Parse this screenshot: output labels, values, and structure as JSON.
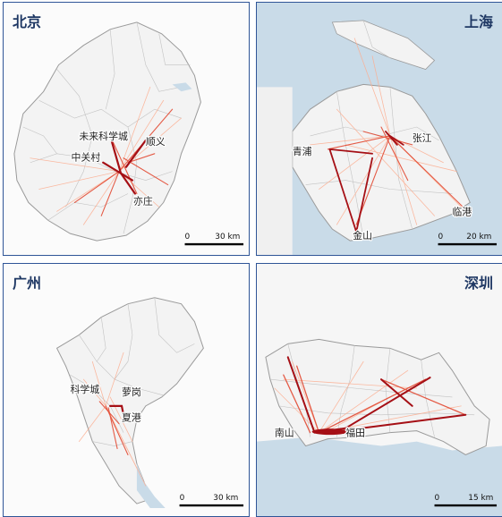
{
  "panels": [
    {
      "id": "beijing",
      "title": "北京",
      "places": [
        "未来科学城",
        "中关村",
        "顺义",
        "亦庄"
      ],
      "scale": {
        "zero": "0",
        "distance": "30 km"
      }
    },
    {
      "id": "shanghai",
      "title": "上海",
      "places": [
        "青浦",
        "张江",
        "临港",
        "金山"
      ],
      "scale": {
        "zero": "0",
        "distance": "20 km"
      }
    },
    {
      "id": "guangzhou",
      "title": "广州",
      "places": [
        "科学城",
        "萝岗",
        "夏港"
      ],
      "scale": {
        "zero": "0",
        "distance": "30 km"
      }
    },
    {
      "id": "shenzhen",
      "title": "深圳",
      "places": [
        "南山",
        "福田"
      ],
      "scale": {
        "zero": "0",
        "distance": "15 km"
      }
    }
  ],
  "colors": {
    "frame": "#2f5597",
    "title": "#1f3864",
    "land": "#f3f3f3",
    "water": "#c9dbe8",
    "strong_flow": "#a50f15",
    "medium_flow": "#e34a33",
    "weak_flow": "#fcae91"
  }
}
